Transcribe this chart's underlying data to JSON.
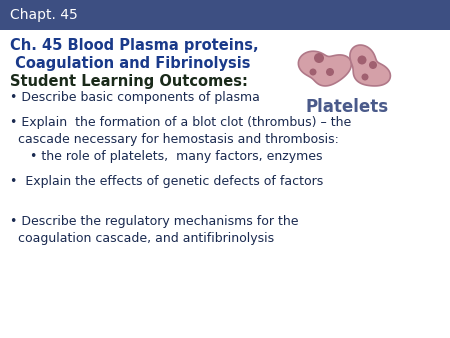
{
  "header_text": "Chapt. 45",
  "header_bg": "#3d4f82",
  "header_text_color": "#ffffff",
  "bg_color": "#ffffff",
  "title_line1": "Ch. 45 Blood Plasma proteins,",
  "title_line2": " Coagulation and Fibrinolysis",
  "title_color": "#1a3a8a",
  "section_header": "Student Learning Outcomes:",
  "section_color": "#1a2a1a",
  "body_color": "#1a2a50",
  "bullet1": "• Describe basic components of plasma",
  "bullet2_line1": "• Explain  the formation of a blot clot (thrombus) – the",
  "bullet2_line2": "  cascade necessary for hemostasis and thrombosis:",
  "bullet2_line3": "     • the role of platelets,  many factors, enzymes",
  "bullet3": "•  Explain the effects of genetic defects of factors",
  "bullet4_line1": "• Describe the regulatory mechanisms for the",
  "bullet4_line2": "  coagulation cascade, and antifibrinolysis",
  "platelets_label": "Platelets",
  "platelets_color": "#4a5a8a",
  "platelet_fill": "#d4a0a8",
  "platelet_edge": "#b07888",
  "platelet_spot": "#a06070"
}
